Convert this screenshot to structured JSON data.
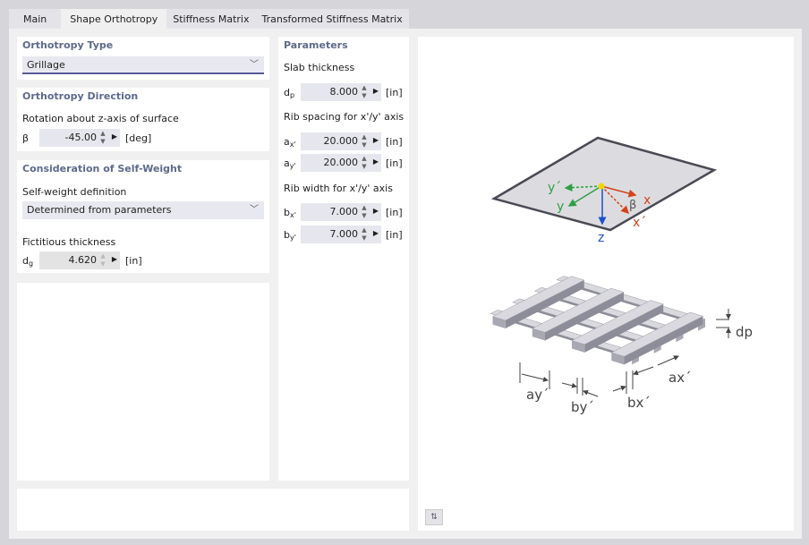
{
  "tabs": [
    "Main",
    "Shape Orthotropy",
    "Stiffness Matrix",
    "Transformed Stiffness Matrix"
  ],
  "active_tab": 1,
  "orthotropy_type": {
    "title": "Orthotropy Type",
    "value": "Grillage"
  },
  "direction": {
    "title": "Orthotropy Direction",
    "label": "Rotation about z-axis of surface",
    "symbol": "β",
    "value": "-45.00",
    "unit": "[deg]"
  },
  "self_weight": {
    "title": "Consideration of Self-Weight",
    "def_label": "Self-weight definition",
    "def_value": "Determined from parameters",
    "thick_label": "Fictitious thickness",
    "symbol": "d",
    "symbol_sub": "g",
    "value": "4.620",
    "unit": "[in]"
  },
  "parameters": {
    "title": "Parameters",
    "slab_label": "Slab thickness",
    "dp": {
      "symbol": "d",
      "sub": "p",
      "value": "8.000",
      "unit": "[in]"
    },
    "spacing_label": "Rib spacing for x'/y' axis",
    "ax": {
      "symbol": "a",
      "sub": "x'",
      "value": "20.000",
      "unit": "[in]"
    },
    "ay": {
      "symbol": "a",
      "sub": "y'",
      "value": "20.000",
      "unit": "[in]"
    },
    "width_label": "Rib width for x'/y' axis",
    "bx": {
      "symbol": "b",
      "sub": "x'",
      "value": "7.000",
      "unit": "[in]"
    },
    "by": {
      "symbol": "b",
      "sub": "y'",
      "value": "7.000",
      "unit": "[in]"
    }
  },
  "diagram": {
    "y_prime": "y´",
    "y": "y",
    "z": "z",
    "x": "x",
    "x_prime": "x´",
    "beta": "β",
    "dp": "dp",
    "ay": "ay´",
    "by": "by´",
    "bx": "bx´",
    "ax": "ax´"
  },
  "colors": {
    "accent": "#5a5a96",
    "title": "#5d6a8c",
    "x_axis": "#d2441c",
    "y_axis": "#2ea043",
    "z_axis": "#1f4fc8"
  }
}
